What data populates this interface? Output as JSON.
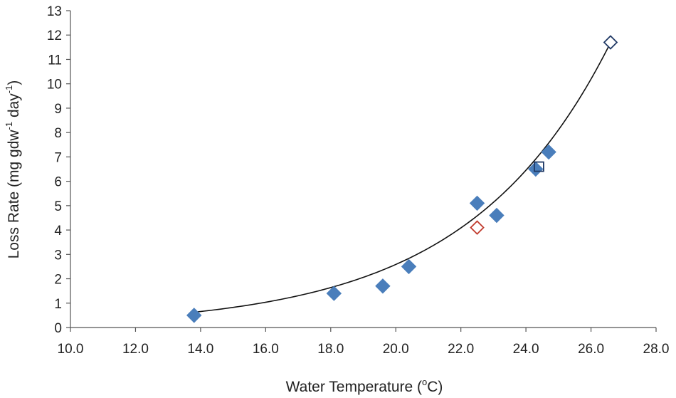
{
  "chart_data": {
    "type": "scatter",
    "title": "",
    "xlabel": {
      "prefix": "Water Temperature (",
      "sup": "o",
      "suffix": "C)"
    },
    "ylabel": {
      "t1": "Loss Rate (mg gdw",
      "s1": "-1",
      "t2": " day",
      "s2": "-1",
      "t3": ")"
    },
    "xlim": [
      10.0,
      28.0
    ],
    "ylim": [
      0,
      13
    ],
    "xticks": [
      "10.0",
      "12.0",
      "14.0",
      "16.0",
      "18.0",
      "20.0",
      "22.0",
      "24.0",
      "26.0",
      "28.0"
    ],
    "yticks": [
      "0",
      "1",
      "2",
      "3",
      "4",
      "5",
      "6",
      "7",
      "8",
      "9",
      "10",
      "11",
      "12",
      "13"
    ],
    "grid": false,
    "legend": "none",
    "series": [
      {
        "marker": "filled-diamond",
        "color": "#4a7ebb",
        "points": [
          {
            "x": 13.8,
            "y": 0.5
          },
          {
            "x": 18.1,
            "y": 1.4
          },
          {
            "x": 19.6,
            "y": 1.7
          },
          {
            "x": 20.4,
            "y": 2.5
          },
          {
            "x": 22.5,
            "y": 5.1
          },
          {
            "x": 23.1,
            "y": 4.6
          },
          {
            "x": 24.3,
            "y": 6.5
          },
          {
            "x": 24.7,
            "y": 7.2
          }
        ]
      },
      {
        "marker": "open-diamond",
        "color": "#c0392b",
        "points": [
          {
            "x": 22.5,
            "y": 4.1
          }
        ]
      },
      {
        "marker": "open-square",
        "color": "#1f3864",
        "points": [
          {
            "x": 24.4,
            "y": 6.6
          }
        ]
      },
      {
        "marker": "open-diamond",
        "color": "#1f3864",
        "points": [
          {
            "x": 26.6,
            "y": 11.7
          }
        ]
      }
    ],
    "trendline": {
      "type": "exponential",
      "color": "#111111",
      "x_range": [
        13.8,
        26.6
      ],
      "a": 0.0268,
      "b": 0.2285
    }
  }
}
